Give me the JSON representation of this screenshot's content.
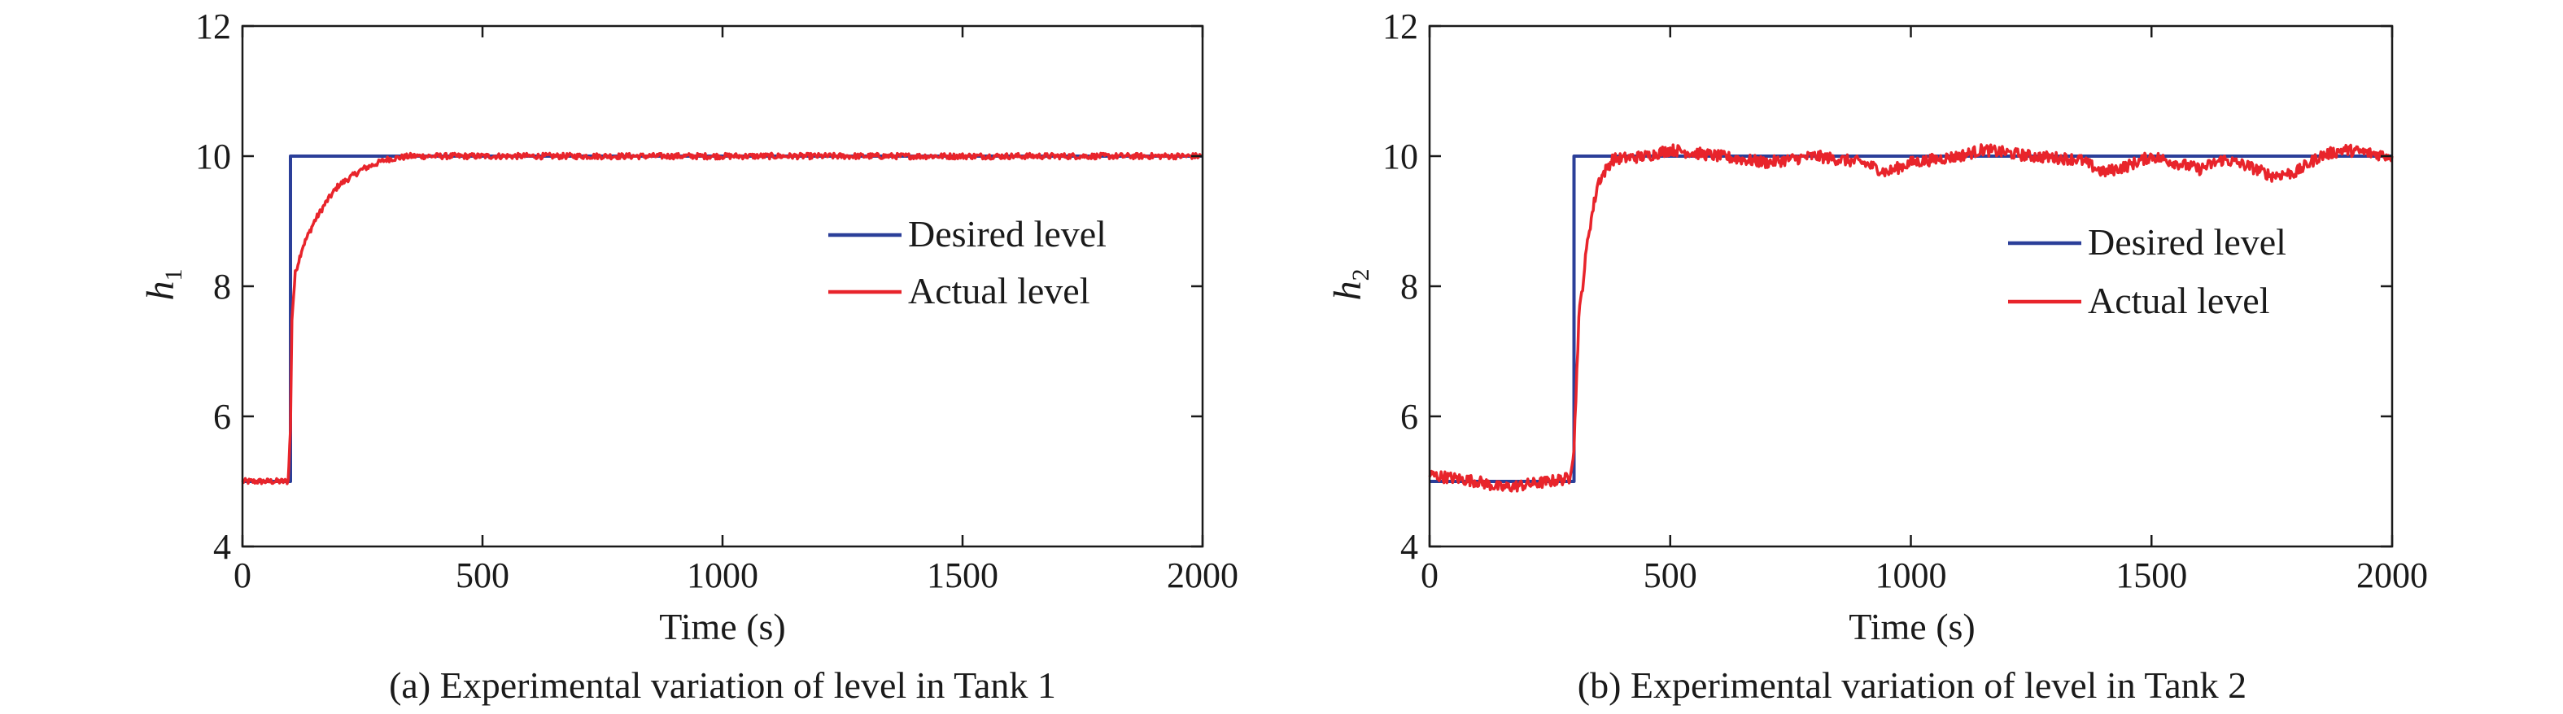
{
  "chart_data": [
    {
      "type": "line",
      "caption": "(a) Experimental variation of level in Tank 1",
      "xlabel": "Time (s)",
      "ylabel": "h",
      "ylabel_subscript": "1",
      "xlim": [
        0,
        2000
      ],
      "ylim": [
        4,
        12
      ],
      "xticks": [
        "0",
        "500",
        "1000",
        "1500",
        "2000"
      ],
      "yticks": [
        "4",
        "6",
        "8",
        "10",
        "12"
      ],
      "grid": false,
      "legend_position": "center-right",
      "series": [
        {
          "name": "Desired level",
          "color": "#2b3f99",
          "x": [
            0,
            100,
            100,
            2000
          ],
          "y": [
            5,
            5,
            10,
            10
          ]
        },
        {
          "name": "Actual level",
          "color": "#e8242b",
          "x": [
            0,
            95,
            100,
            103,
            110,
            125,
            150,
            175,
            200,
            250,
            300,
            350,
            400,
            500,
            700,
            1000,
            1500,
            2000
          ],
          "y": [
            5,
            5,
            5.8,
            7.5,
            8.2,
            8.6,
            9.0,
            9.3,
            9.55,
            9.8,
            9.95,
            10,
            10,
            10,
            10,
            10,
            10,
            10
          ]
        }
      ]
    },
    {
      "type": "line",
      "caption": "(b) Experimental variation of level in Tank 2",
      "xlabel": "Time (s)",
      "ylabel": "h",
      "ylabel_subscript": "2",
      "xlim": [
        0,
        2000
      ],
      "ylim": [
        4,
        12
      ],
      "xticks": [
        "0",
        "500",
        "1000",
        "1500",
        "2000"
      ],
      "yticks": [
        "4",
        "6",
        "8",
        "10",
        "12"
      ],
      "grid": false,
      "legend_position": "center-right",
      "series": [
        {
          "name": "Desired level",
          "color": "#2b3f99",
          "x": [
            0,
            300,
            300,
            2000
          ],
          "y": [
            5,
            5,
            10,
            10
          ]
        },
        {
          "name": "Actual level",
          "color": "#e8242b",
          "x": [
            0,
            50,
            100,
            150,
            200,
            250,
            290,
            300,
            310,
            330,
            350,
            380,
            450,
            500,
            600,
            700,
            800,
            900,
            950,
            1000,
            1100,
            1150,
            1250,
            1350,
            1400,
            1450,
            1500,
            1600,
            1650,
            1700,
            1750,
            1800,
            1850,
            1900,
            2000
          ],
          "y": [
            5.1,
            5.05,
            5.0,
            4.9,
            4.95,
            5.0,
            5.05,
            5.5,
            7.5,
            8.8,
            9.6,
            9.95,
            10.0,
            10.1,
            10.0,
            9.9,
            10.0,
            9.9,
            9.75,
            9.9,
            10.0,
            10.1,
            10.0,
            9.95,
            9.75,
            9.85,
            10.0,
            9.8,
            9.95,
            9.85,
            9.7,
            9.75,
            10.0,
            10.1,
            10.0
          ]
        }
      ]
    }
  ]
}
